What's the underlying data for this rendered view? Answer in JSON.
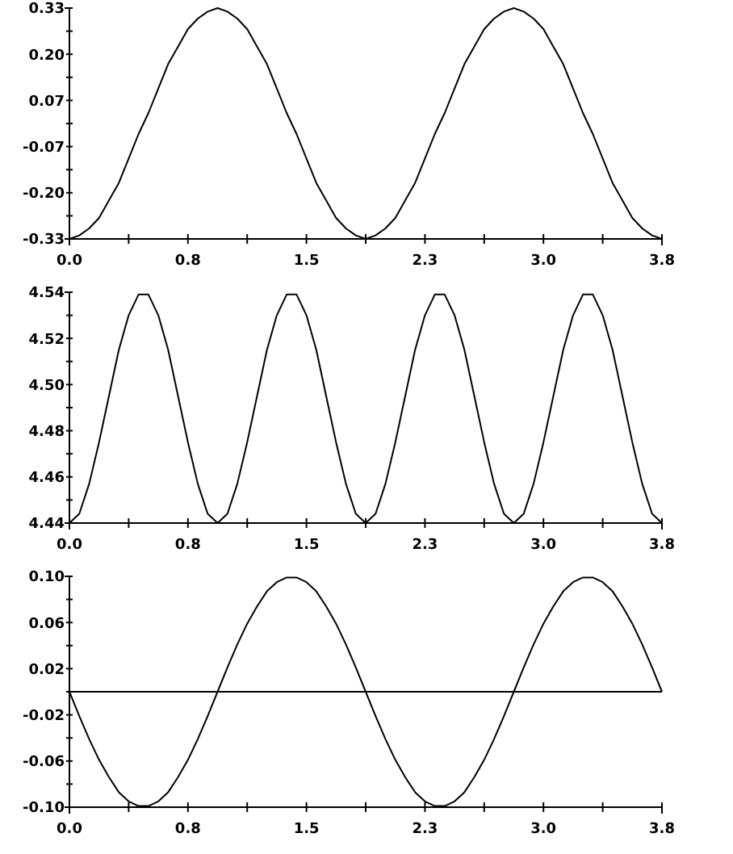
{
  "chart_data": [
    {
      "type": "line",
      "x": [
        0,
        0.0625,
        0.125,
        0.1875,
        0.25,
        0.3125,
        0.375,
        0.4375,
        0.5,
        0.5625,
        0.625,
        0.6875,
        0.75,
        0.8125,
        0.875,
        0.9375,
        1,
        1.0625,
        1.125,
        1.1875,
        1.25,
        1.3125,
        1.375,
        1.4375,
        1.5,
        1.5625,
        1.625,
        1.6875,
        1.75,
        1.8125,
        1.875,
        1.9375,
        2,
        2.0625,
        2.125,
        2.1875,
        2.25,
        2.3125,
        2.375,
        2.4375,
        2.5,
        2.5625,
        2.625,
        2.6875,
        2.75,
        2.8125,
        2.875,
        2.9375,
        3,
        3.0625,
        3.125,
        3.1875,
        3.25,
        3.3125,
        3.375,
        3.4375,
        3.5,
        3.5625,
        3.625,
        3.6875,
        3.75
      ],
      "series": [
        {
          "color": "#000000",
          "values": [
            -0.33,
            -0.32,
            -0.3,
            -0.27,
            -0.22,
            -0.17,
            -0.1,
            -0.03,
            0.03,
            0.1,
            0.17,
            0.22,
            0.27,
            0.3,
            0.32,
            0.33,
            0.32,
            0.3,
            0.27,
            0.22,
            0.17,
            0.1,
            0.03,
            -0.03,
            -0.1,
            -0.17,
            -0.22,
            -0.27,
            -0.3,
            -0.32,
            -0.33,
            -0.32,
            -0.3,
            -0.27,
            -0.22,
            -0.17,
            -0.1,
            -0.03,
            0.03,
            0.1,
            0.17,
            0.22,
            0.27,
            0.3,
            0.32,
            0.33,
            0.32,
            0.3,
            0.27,
            0.22,
            0.17,
            0.1,
            0.03,
            -0.03,
            -0.1,
            -0.17,
            -0.22,
            -0.27,
            -0.3,
            -0.32,
            -0.33
          ]
        }
      ],
      "xlim": [
        0,
        3.75
      ],
      "xticks": [
        {
          "value": 0,
          "label": "0.0"
        },
        {
          "value": 0.375,
          "label": null
        },
        {
          "value": 0.75,
          "label": "0.8"
        },
        {
          "value": 1.125,
          "label": null
        },
        {
          "value": 1.5,
          "label": "1.5"
        },
        {
          "value": 1.875,
          "label": null
        },
        {
          "value": 2.25,
          "label": "2.3"
        },
        {
          "value": 2.625,
          "label": null
        },
        {
          "value": 3,
          "label": "3.0"
        },
        {
          "value": 3.375,
          "label": null
        },
        {
          "value": 3.75,
          "label": "3.8"
        }
      ],
      "ylim": [
        -0.33,
        0.33
      ],
      "yticks": [
        {
          "value": -0.33,
          "label": "-0.33"
        },
        {
          "value": -0.264,
          "label": null
        },
        {
          "value": -0.198,
          "label": "-0.20"
        },
        {
          "value": -0.132,
          "label": null
        },
        {
          "value": -0.066,
          "label": "-0.07"
        },
        {
          "value": 0,
          "label": null
        },
        {
          "value": 0.066,
          "label": "0.07"
        },
        {
          "value": 0.132,
          "label": null
        },
        {
          "value": 0.198,
          "label": "0.20"
        },
        {
          "value": 0.264,
          "label": null
        },
        {
          "value": 0.33,
          "label": "0.33"
        }
      ],
      "grid": false,
      "marker": "none",
      "line_style": "solid"
    },
    {
      "type": "line",
      "x": [
        0,
        0.0625,
        0.125,
        0.1875,
        0.25,
        0.3125,
        0.375,
        0.4375,
        0.5,
        0.5625,
        0.625,
        0.6875,
        0.75,
        0.8125,
        0.875,
        0.9375,
        1,
        1.0625,
        1.125,
        1.1875,
        1.25,
        1.3125,
        1.375,
        1.4375,
        1.5,
        1.5625,
        1.625,
        1.6875,
        1.75,
        1.8125,
        1.875,
        1.9375,
        2,
        2.0625,
        2.125,
        2.1875,
        2.25,
        2.3125,
        2.375,
        2.4375,
        2.5,
        2.5625,
        2.625,
        2.6875,
        2.75,
        2.8125,
        2.875,
        2.9375,
        3,
        3.0625,
        3.125,
        3.1875,
        3.25,
        3.3125,
        3.375,
        3.4375,
        3.5,
        3.5625,
        3.625,
        3.6875,
        3.75
      ],
      "series": [
        {
          "color": "#000000",
          "values": [
            4.44,
            4.444,
            4.457,
            4.475,
            4.495,
            4.515,
            4.53,
            4.539,
            4.539,
            4.53,
            4.515,
            4.495,
            4.475,
            4.457,
            4.444,
            4.44,
            4.444,
            4.457,
            4.475,
            4.495,
            4.515,
            4.53,
            4.539,
            4.539,
            4.53,
            4.515,
            4.495,
            4.475,
            4.457,
            4.444,
            4.44,
            4.444,
            4.457,
            4.475,
            4.495,
            4.515,
            4.53,
            4.539,
            4.539,
            4.53,
            4.515,
            4.495,
            4.475,
            4.457,
            4.444,
            4.44,
            4.444,
            4.457,
            4.475,
            4.495,
            4.515,
            4.53,
            4.539,
            4.539,
            4.53,
            4.515,
            4.495,
            4.475,
            4.457,
            4.444,
            4.44
          ]
        }
      ],
      "xlim": [
        0,
        3.75
      ],
      "xticks": [
        {
          "value": 0,
          "label": "0.0"
        },
        {
          "value": 0.375,
          "label": null
        },
        {
          "value": 0.75,
          "label": "0.8"
        },
        {
          "value": 1.125,
          "label": null
        },
        {
          "value": 1.5,
          "label": "1.5"
        },
        {
          "value": 1.875,
          "label": null
        },
        {
          "value": 2.25,
          "label": "2.3"
        },
        {
          "value": 2.625,
          "label": null
        },
        {
          "value": 3,
          "label": "3.0"
        },
        {
          "value": 3.375,
          "label": null
        },
        {
          "value": 3.75,
          "label": "3.8"
        }
      ],
      "ylim": [
        4.44,
        4.54
      ],
      "yticks": [
        {
          "value": 4.44,
          "label": "4.44"
        },
        {
          "value": 4.45,
          "label": null
        },
        {
          "value": 4.46,
          "label": "4.46"
        },
        {
          "value": 4.47,
          "label": null
        },
        {
          "value": 4.48,
          "label": "4.48"
        },
        {
          "value": 4.49,
          "label": null
        },
        {
          "value": 4.5,
          "label": "4.50"
        },
        {
          "value": 4.51,
          "label": null
        },
        {
          "value": 4.52,
          "label": "4.52"
        },
        {
          "value": 4.53,
          "label": null
        },
        {
          "value": 4.54,
          "label": "4.54"
        }
      ],
      "grid": false,
      "marker": "none",
      "line_style": "solid"
    },
    {
      "type": "line",
      "x": [
        0,
        0.0625,
        0.125,
        0.1875,
        0.25,
        0.3125,
        0.375,
        0.4375,
        0.5,
        0.5625,
        0.625,
        0.6875,
        0.75,
        0.8125,
        0.875,
        0.9375,
        1,
        1.0625,
        1.125,
        1.1875,
        1.25,
        1.3125,
        1.375,
        1.4375,
        1.5,
        1.5625,
        1.625,
        1.6875,
        1.75,
        1.8125,
        1.875,
        1.9375,
        2,
        2.0625,
        2.125,
        2.1875,
        2.25,
        2.3125,
        2.375,
        2.4375,
        2.5,
        2.5625,
        2.625,
        2.6875,
        2.75,
        2.8125,
        2.875,
        2.9375,
        3,
        3.0625,
        3.125,
        3.1875,
        3.25,
        3.3125,
        3.375,
        3.4375,
        3.5,
        3.5625,
        3.625,
        3.6875,
        3.75
      ],
      "series": [
        {
          "color": "#000000",
          "values": [
            0,
            -0.021,
            -0.041,
            -0.059,
            -0.074,
            -0.087,
            -0.095,
            -0.099,
            -0.099,
            -0.095,
            -0.087,
            -0.074,
            -0.059,
            -0.041,
            -0.021,
            0,
            0.021,
            0.041,
            0.059,
            0.074,
            0.087,
            0.095,
            0.099,
            0.099,
            0.095,
            0.087,
            0.074,
            0.059,
            0.041,
            0.021,
            0,
            -0.021,
            -0.041,
            -0.059,
            -0.074,
            -0.087,
            -0.095,
            -0.099,
            -0.099,
            -0.095,
            -0.087,
            -0.074,
            -0.059,
            -0.041,
            -0.021,
            0,
            0.021,
            0.041,
            0.059,
            0.074,
            0.087,
            0.095,
            0.099,
            0.099,
            0.095,
            0.087,
            0.074,
            0.059,
            0.041,
            0.021,
            0
          ]
        }
      ],
      "xlim": [
        0,
        3.75
      ],
      "xticks": [
        {
          "value": 0,
          "label": "0.0"
        },
        {
          "value": 0.375,
          "label": null
        },
        {
          "value": 0.75,
          "label": "0.8"
        },
        {
          "value": 1.125,
          "label": null
        },
        {
          "value": 1.5,
          "label": "1.5"
        },
        {
          "value": 1.875,
          "label": null
        },
        {
          "value": 2.25,
          "label": "2.3"
        },
        {
          "value": 2.625,
          "label": null
        },
        {
          "value": 3,
          "label": "3.0"
        },
        {
          "value": 3.375,
          "label": null
        },
        {
          "value": 3.75,
          "label": "3.8"
        }
      ],
      "ylim": [
        -0.1,
        0.1
      ],
      "yticks": [
        {
          "value": -0.1,
          "label": "-0.10"
        },
        {
          "value": -0.08,
          "label": null
        },
        {
          "value": -0.06,
          "label": "-0.06"
        },
        {
          "value": -0.04,
          "label": null
        },
        {
          "value": -0.02,
          "label": "-0.02"
        },
        {
          "value": 0,
          "label": null
        },
        {
          "value": 0.02,
          "label": "0.02"
        },
        {
          "value": 0.04,
          "label": null
        },
        {
          "value": 0.06,
          "label": "0.06"
        },
        {
          "value": 0.08,
          "label": null
        },
        {
          "value": 0.1,
          "label": "0.10"
        }
      ],
      "ref_lines": [
        {
          "axis": "y",
          "value": 0,
          "color": "#000000"
        }
      ],
      "grid": false,
      "marker": "none",
      "line_style": "solid"
    }
  ]
}
